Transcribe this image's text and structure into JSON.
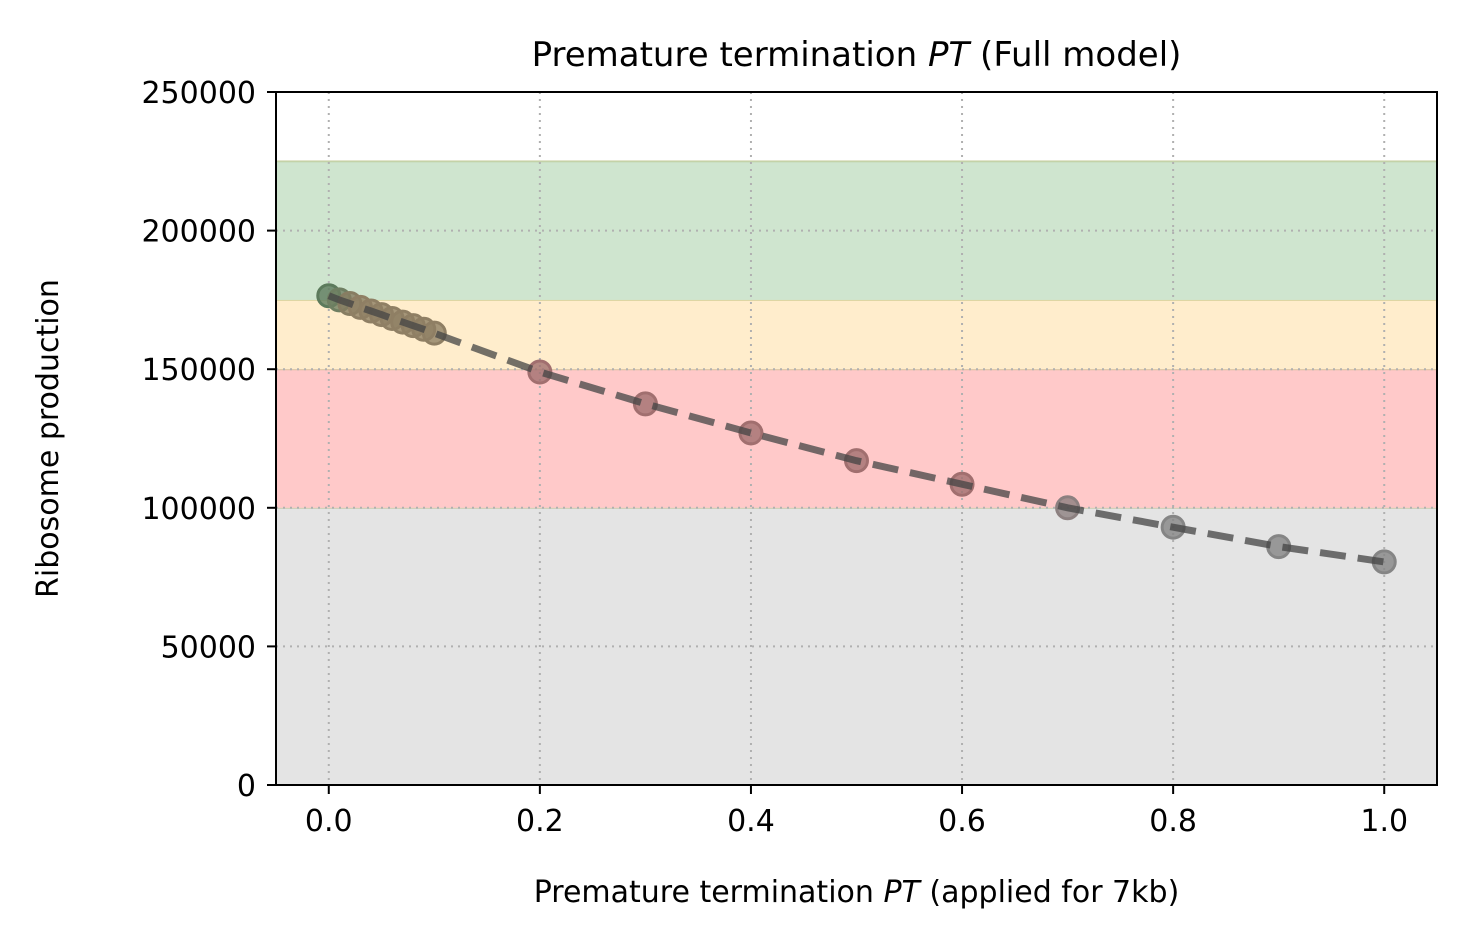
{
  "chart_data": {
    "type": "scatter",
    "title": {
      "pre": "Premature termination ",
      "italic": "PT",
      "post": " (Full model)"
    },
    "xlabel": {
      "pre": "Premature termination ",
      "italic": "PT",
      "post": " (applied for 7kb)"
    },
    "ylabel": "Ribosome production",
    "xlim": [
      -0.05,
      1.05
    ],
    "ylim": [
      0,
      250000
    ],
    "xticks": [
      0.0,
      0.2,
      0.4,
      0.6,
      0.8,
      1.0
    ],
    "xtick_labels": [
      "0.0",
      "0.2",
      "0.4",
      "0.6",
      "0.8",
      "1.0"
    ],
    "yticks": [
      0,
      50000,
      100000,
      150000,
      200000,
      250000
    ],
    "ytick_labels": [
      "0",
      "50000",
      "100000",
      "150000",
      "200000",
      "250000"
    ],
    "grid": true,
    "bands": [
      {
        "y0": 0,
        "y1": 100000,
        "color": "#e4e4e4"
      },
      {
        "y0": 100000,
        "y1": 150000,
        "color": "#ffc9c9"
      },
      {
        "y0": 150000,
        "y1": 175000,
        "color": "#ffedcc"
      },
      {
        "y0": 175000,
        "y1": 225000,
        "color": "#cfe5cf"
      }
    ],
    "series": [
      {
        "x": [
          0.0,
          0.01,
          0.02,
          0.03,
          0.04,
          0.05,
          0.06,
          0.07,
          0.08,
          0.09,
          0.1,
          0.2,
          0.3,
          0.4,
          0.5,
          0.6,
          0.7,
          0.8,
          0.9,
          1.0
        ],
        "y": [
          176500,
          175000,
          173700,
          172300,
          171000,
          169700,
          168300,
          167000,
          165700,
          164400,
          163000,
          149000,
          137500,
          127000,
          117000,
          108500,
          100000,
          93000,
          86000,
          80500
        ],
        "line_style": "dashed",
        "line_color": "#444444",
        "marker_colors": [
          "#5c7a5c",
          "#6f7f62",
          "#877d62",
          "#8f7f64",
          "#8f7f64",
          "#8f7f64",
          "#8f7f64",
          "#8f7f64",
          "#8f7f64",
          "#8f7f64",
          "#8f7f64",
          "#a16f6f",
          "#a16f6f",
          "#a16f6f",
          "#a16f6f",
          "#a16f6f",
          "#8c8080",
          "#858585",
          "#858585",
          "#858585"
        ]
      }
    ]
  }
}
